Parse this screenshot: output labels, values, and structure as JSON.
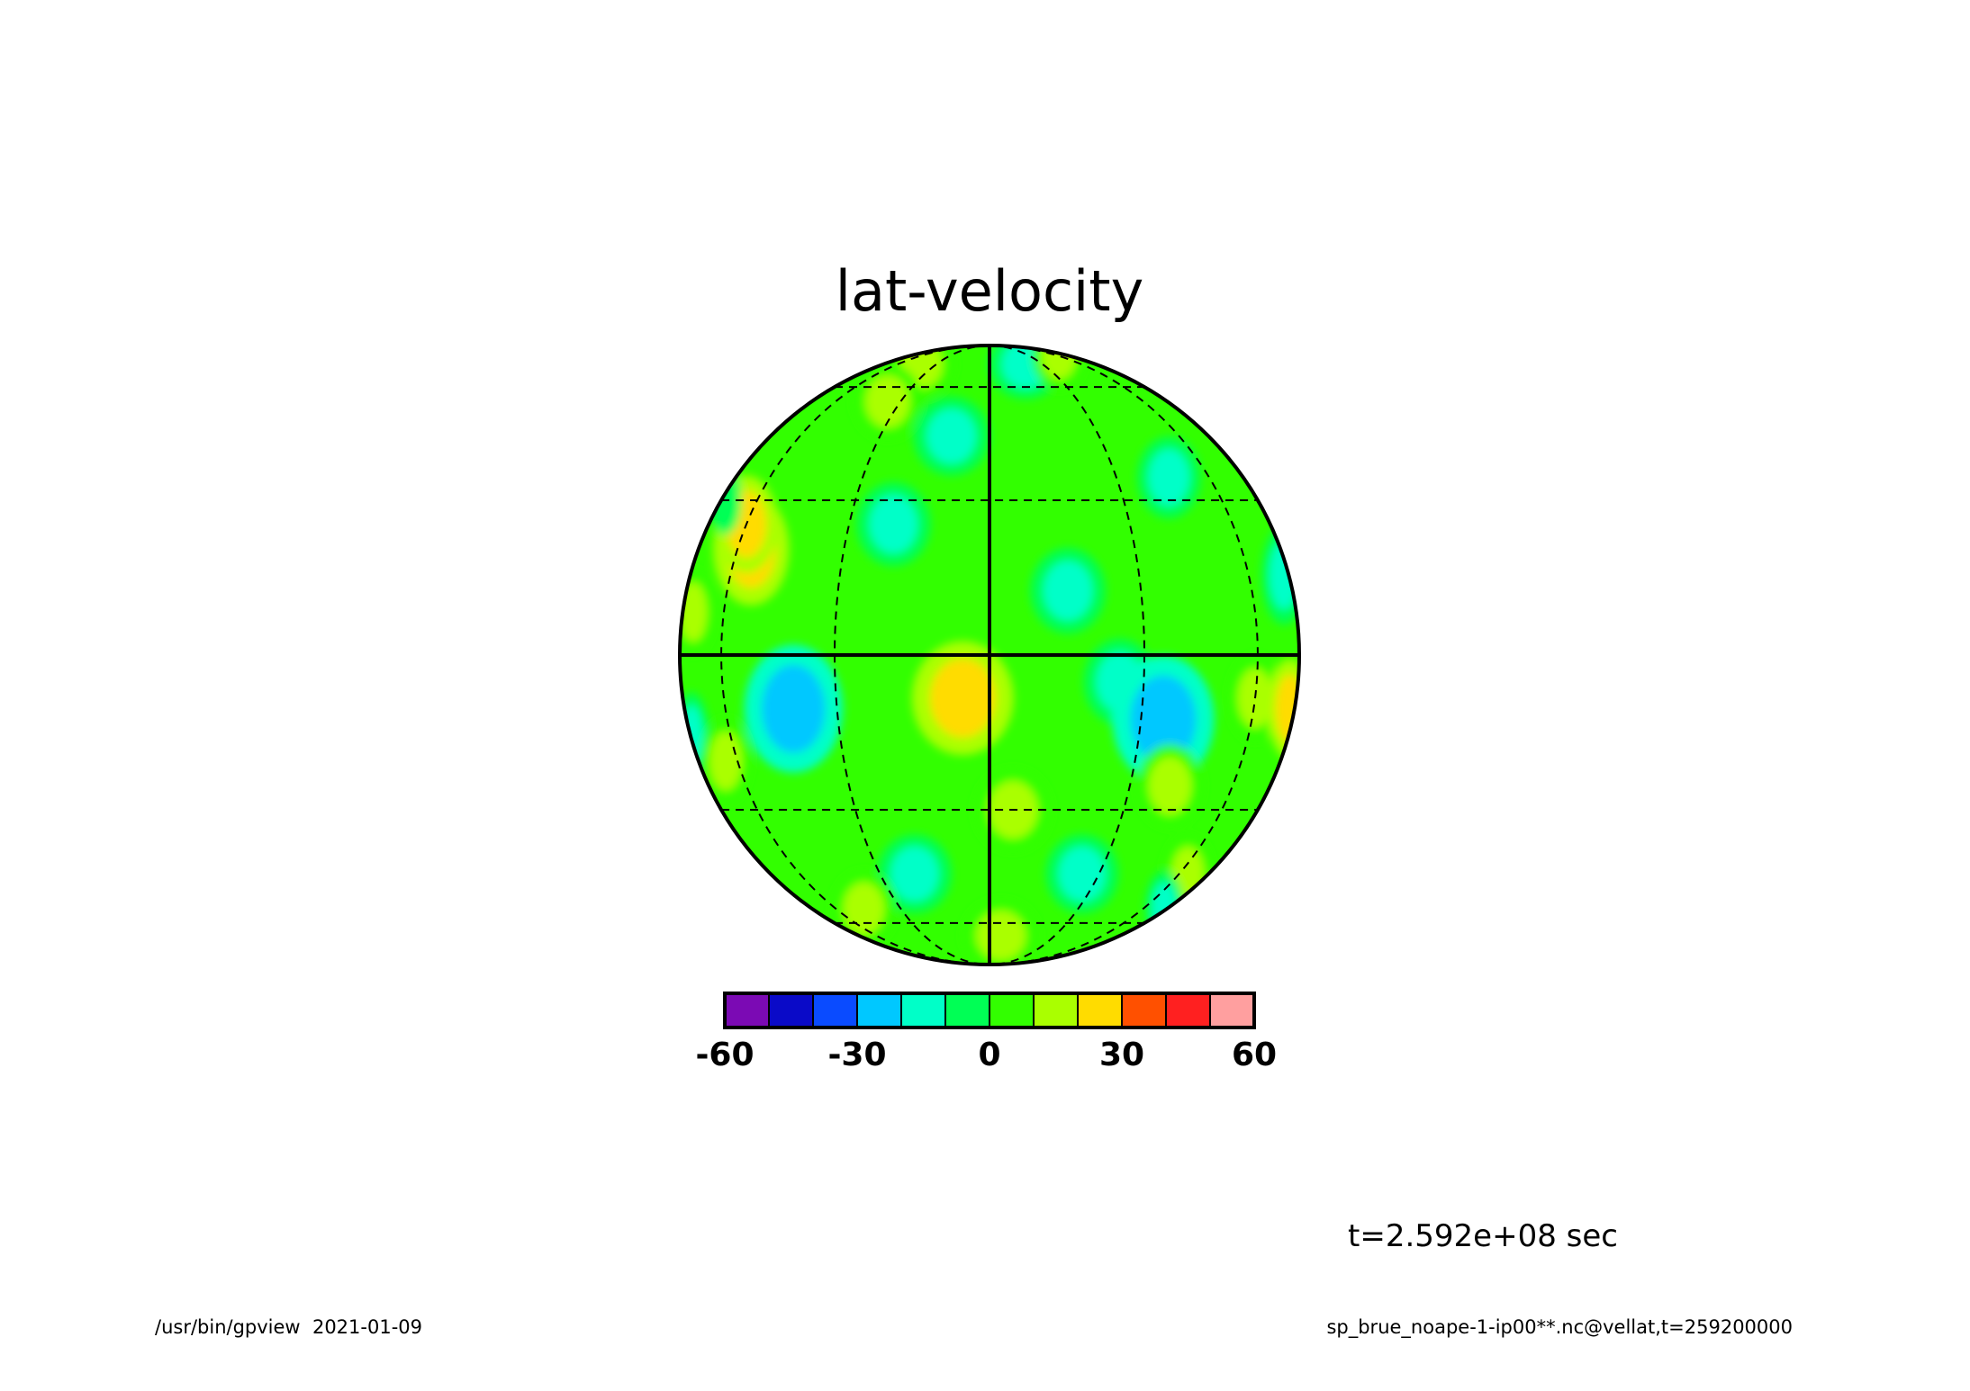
{
  "title": "lat-velocity",
  "time_label": "t=2.592e+08 sec",
  "footer_left": "/usr/bin/gpview  2021-01-09",
  "footer_right": "sp_brue_noape-1-ip00**.nc@vellat,t=259200000",
  "chart_data": {
    "type": "heatmap",
    "projection": "orthographic",
    "variable": "lat-velocity",
    "levels": [
      -60,
      -50,
      -40,
      -30,
      -20,
      -10,
      0,
      10,
      20,
      30,
      40,
      50,
      60
    ],
    "colorbar_colors": [
      "#7b0ab4",
      "#0a0ac8",
      "#0a4bff",
      "#00c8ff",
      "#00ffc8",
      "#00ff55",
      "#32ff00",
      "#aaff00",
      "#ffdc00",
      "#ff5000",
      "#ff2020",
      "#ff9f9f"
    ],
    "colorbar_tick_labels": [
      "-60",
      "-30",
      "0",
      "30",
      "60"
    ],
    "colorbar_tick_values": [
      -60,
      -30,
      0,
      30,
      60
    ],
    "grid": true,
    "field_blobs": [
      {
        "lon": -70,
        "lat": 75,
        "value": -15
      },
      {
        "lon": -40,
        "lat": 70,
        "value": 15
      },
      {
        "lon": 20,
        "lat": 70,
        "value": -15
      },
      {
        "lon": 60,
        "lat": 75,
        "value": 15
      },
      {
        "lon": -35,
        "lat": 55,
        "value": 15
      },
      {
        "lon": -10,
        "lat": 45,
        "value": -15
      },
      {
        "lon": 45,
        "lat": 35,
        "value": -15
      },
      {
        "lon": 80,
        "lat": 15,
        "value": -20
      },
      {
        "lon": -55,
        "lat": 20,
        "value": 25
      },
      {
        "lon": -60,
        "lat": 25,
        "value": 20
      },
      {
        "lon": -80,
        "lat": 30,
        "value": -10
      },
      {
        "lon": -20,
        "lat": 25,
        "value": -15
      },
      {
        "lon": 15,
        "lat": 12,
        "value": -15
      },
      {
        "lon": -75,
        "lat": 8,
        "value": 15
      },
      {
        "lon": -40,
        "lat": -10,
        "value": -30
      },
      {
        "lon": -5,
        "lat": -8,
        "value": 25
      },
      {
        "lon": 25,
        "lat": -5,
        "value": -15
      },
      {
        "lon": 35,
        "lat": -12,
        "value": -30
      },
      {
        "lon": 60,
        "lat": -8,
        "value": 15
      },
      {
        "lon": 80,
        "lat": -10,
        "value": 20
      },
      {
        "lon": -85,
        "lat": -15,
        "value": -15
      },
      {
        "lon": -65,
        "lat": -20,
        "value": 15
      },
      {
        "lon": 40,
        "lat": -25,
        "value": 15
      },
      {
        "lon": 5,
        "lat": -30,
        "value": 15
      },
      {
        "lon": -20,
        "lat": -45,
        "value": -15
      },
      {
        "lon": 25,
        "lat": -45,
        "value": -15
      },
      {
        "lon": -45,
        "lat": -55,
        "value": 15
      },
      {
        "lon": 65,
        "lat": -45,
        "value": 15
      },
      {
        "lon": 5,
        "lat": -65,
        "value": 15
      },
      {
        "lon": 80,
        "lat": -55,
        "value": -15
      }
    ]
  }
}
